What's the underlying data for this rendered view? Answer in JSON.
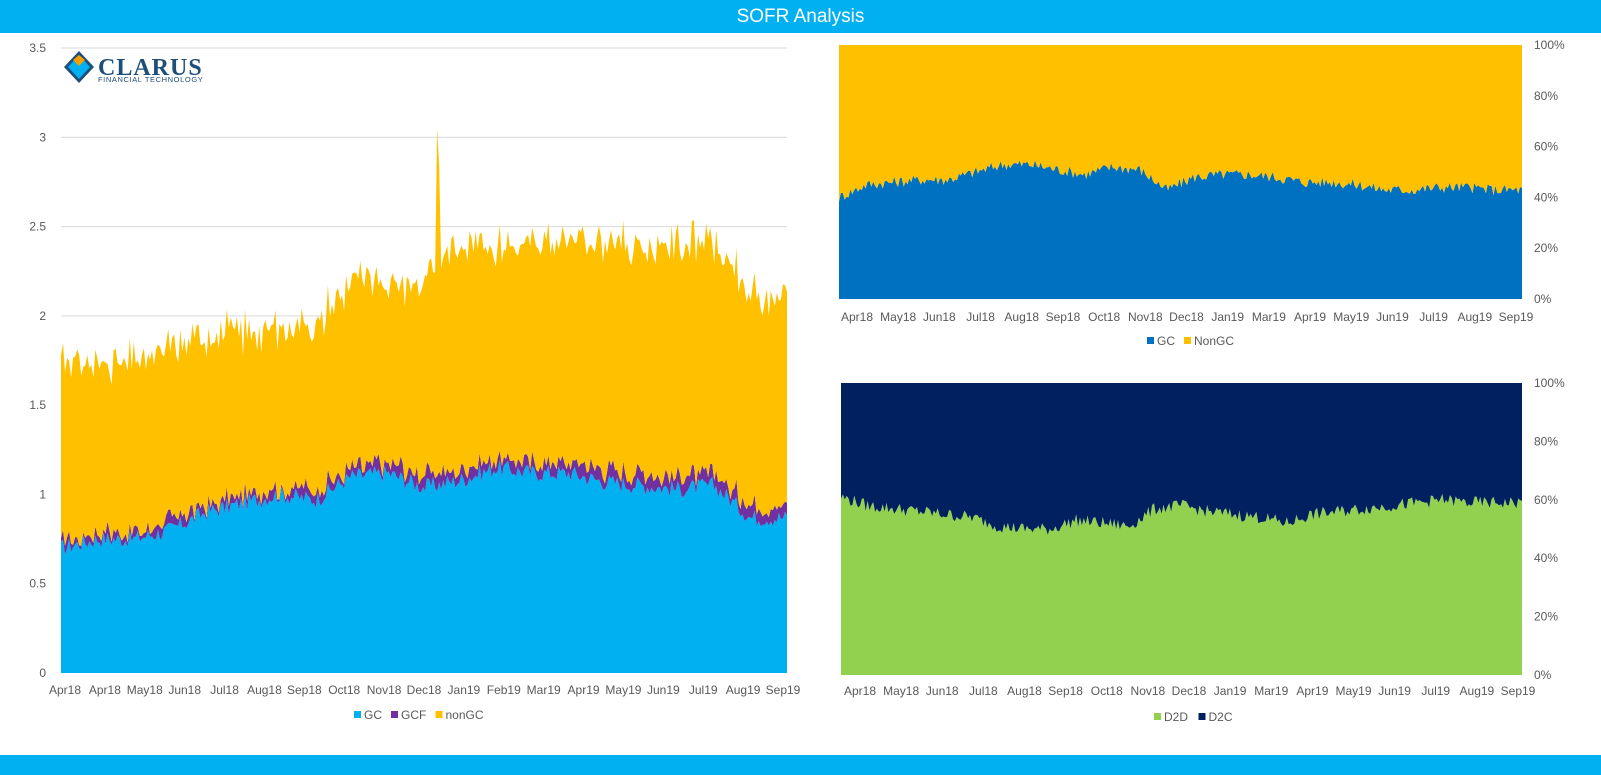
{
  "header": {
    "title": "SOFR Analysis"
  },
  "logo": {
    "name": "CLARUS",
    "tagline": "FINANCIAL TECHNOLOGY"
  },
  "chart_data": [
    {
      "id": "volume",
      "type": "area",
      "stacked": true,
      "y_ticks": [
        "0",
        "0.5",
        "1",
        "1.5",
        "2",
        "2.5",
        "3",
        "3.5"
      ],
      "ylim": [
        0,
        3.5
      ],
      "x_labels": [
        "Apr18",
        "Apr18",
        "May18",
        "Jun18",
        "Jul18",
        "Aug18",
        "Sep18",
        "Oct18",
        "Nov18",
        "Dec18",
        "Jan19",
        "Feb19",
        "Mar19",
        "Apr19",
        "May19",
        "Jun19",
        "Jul19",
        "Aug19",
        "Sep19"
      ],
      "grid": true,
      "legend_position": "bottom",
      "series": [
        {
          "name": "GC",
          "color": "#00b0f0",
          "values": [
            0.7,
            0.75,
            0.75,
            0.8,
            0.9,
            0.95,
            1.0,
            0.97,
            1.1,
            1.12,
            1.04,
            1.08,
            1.15,
            1.12,
            1.12,
            1.07,
            1.05,
            1.03,
            1.05,
            0.87,
            0.87
          ]
        },
        {
          "name": "GCF",
          "color": "#7030a0",
          "values": [
            0.04,
            0.04,
            0.04,
            0.05,
            0.04,
            0.04,
            0.04,
            0.05,
            0.05,
            0.06,
            0.06,
            0.06,
            0.05,
            0.06,
            0.06,
            0.06,
            0.07,
            0.06,
            0.07,
            0.07,
            0.07
          ]
        },
        {
          "name": "nonGC",
          "color": "#ffc000",
          "values": [
            1.03,
            0.95,
            0.96,
            0.95,
            0.96,
            0.91,
            0.91,
            0.93,
            1.05,
            0.98,
            1.1,
            1.29,
            1.2,
            1.21,
            1.25,
            1.29,
            1.27,
            1.31,
            1.28,
            1.18,
            1.19
          ]
        }
      ]
    },
    {
      "id": "gc-share",
      "type": "area",
      "stacked": true,
      "percent": true,
      "y_ticks": [
        "0%",
        "20%",
        "40%",
        "60%",
        "80%",
        "100%"
      ],
      "x_labels": [
        "Apr18",
        "May18",
        "Jun18",
        "Jul18",
        "Aug18",
        "Sep18",
        "Oct18",
        "Nov18",
        "Dec18",
        "Jan19",
        "Mar19",
        "Apr19",
        "May19",
        "Jun19",
        "Jul19",
        "Aug19",
        "Sep19"
      ],
      "legend_position": "bottom",
      "series": [
        {
          "name": "GC",
          "color": "#0070c0",
          "values": [
            40,
            45,
            46,
            47,
            47,
            50,
            53,
            53,
            51,
            49,
            52,
            51,
            43,
            48,
            49,
            49,
            48,
            46,
            46,
            45,
            43,
            43,
            44,
            44,
            43,
            43
          ]
        },
        {
          "name": "NonGC",
          "color": "#ffc000",
          "values": [
            60,
            55,
            54,
            53,
            53,
            50,
            47,
            47,
            49,
            51,
            48,
            49,
            57,
            52,
            51,
            51,
            52,
            54,
            54,
            55,
            57,
            57,
            56,
            56,
            57,
            57
          ]
        }
      ]
    },
    {
      "id": "d2d-share",
      "type": "area",
      "stacked": true,
      "percent": true,
      "y_ticks": [
        "0%",
        "20%",
        "40%",
        "60%",
        "80%",
        "100%"
      ],
      "x_labels": [
        "Apr18",
        "May18",
        "Jun18",
        "Jul18",
        "Aug18",
        "Sep18",
        "Oct18",
        "Nov18",
        "Dec18",
        "Jan19",
        "Mar19",
        "Apr19",
        "May19",
        "Jun19",
        "Jul19",
        "Aug19",
        "Sep19"
      ],
      "legend_position": "bottom",
      "series": [
        {
          "name": "D2D",
          "color": "#92d050",
          "values": [
            61,
            58,
            57,
            56,
            55,
            54,
            51,
            50,
            50,
            53,
            52,
            51,
            57,
            58,
            56,
            55,
            54,
            52,
            55,
            56,
            57,
            58,
            59,
            60,
            59,
            59,
            59
          ]
        },
        {
          "name": "D2C",
          "color": "#002060",
          "values": [
            39,
            42,
            43,
            44,
            45,
            46,
            49,
            50,
            50,
            47,
            48,
            49,
            43,
            42,
            44,
            45,
            46,
            48,
            45,
            44,
            43,
            42,
            41,
            40,
            41,
            41,
            41
          ]
        }
      ]
    }
  ]
}
